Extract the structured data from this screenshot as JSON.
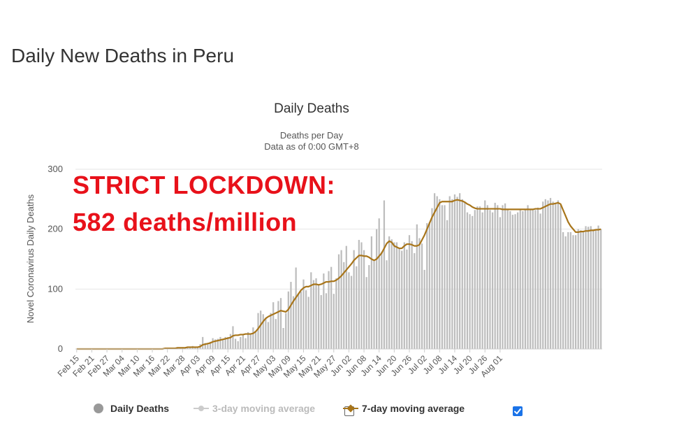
{
  "page": {
    "title": "Daily New Deaths in Peru"
  },
  "annotation": {
    "line1": "STRICT LOCKDOWN:",
    "line2": "582 deaths/million",
    "color": "#e8111a"
  },
  "legend": {
    "items": [
      {
        "label": "Daily Deaths",
        "enabled": true
      },
      {
        "label": "3-day moving average",
        "enabled": false,
        "checkbox_checked": false
      },
      {
        "label": "7-day moving average",
        "enabled": true,
        "checkbox_checked": true
      }
    ]
  },
  "colors": {
    "bars": "#bdbdbd",
    "ma7": "#a8751a",
    "grid": "#e6e6e6",
    "checkbox": "#1a73e8"
  },
  "chart_data": {
    "type": "bar",
    "title": "Daily Deaths",
    "subtitle": [
      "Deaths per Day",
      "Data as of 0:00 GMT+8"
    ],
    "ylabel": "Novel Coronavirus Daily Deaths",
    "xlabel": "",
    "ylim": [
      0,
      300
    ],
    "yticks": [
      0,
      100,
      200,
      300
    ],
    "grid": true,
    "legend_position": "bottom",
    "start_date": "Feb 15",
    "xticks": [
      "Feb 15",
      "Feb 21",
      "Feb 27",
      "Mar 04",
      "Mar 10",
      "Mar 16",
      "Mar 22",
      "Mar 28",
      "Apr 03",
      "Apr 09",
      "Apr 15",
      "Apr 21",
      "Apr 27",
      "May 03",
      "May 09",
      "May 15",
      "May 21",
      "May 27",
      "Jun 02",
      "Jun 08",
      "Jun 14",
      "Jun 20",
      "Jun 26",
      "Jul 02",
      "Jul 08",
      "Jul 14",
      "Jul 20",
      "Jul 26",
      "Aug 01"
    ],
    "series": [
      {
        "name": "Daily Deaths",
        "type": "bar",
        "x_start": "Feb 15",
        "values": [
          0,
          0,
          0,
          0,
          0,
          0,
          0,
          0,
          0,
          0,
          0,
          0,
          0,
          0,
          0,
          0,
          0,
          0,
          0,
          0,
          0,
          0,
          0,
          0,
          0,
          0,
          0,
          0,
          0,
          0,
          0,
          0,
          0,
          0,
          0,
          2,
          0,
          2,
          2,
          2,
          3,
          2,
          3,
          1,
          4,
          3,
          5,
          4,
          2,
          8,
          20,
          10,
          10,
          12,
          18,
          16,
          17,
          20,
          15,
          20,
          20,
          25,
          38,
          17,
          13,
          20,
          24,
          18,
          28,
          24,
          36,
          30,
          60,
          64,
          58,
          52,
          45,
          60,
          78,
          50,
          80,
          85,
          35,
          60,
          96,
          112,
          88,
          136,
          92,
          96,
          116,
          98,
          87,
          128,
          115,
          118,
          108,
          90,
          126,
          93,
          130,
          137,
          92,
          118,
          158,
          165,
          145,
          172,
          128,
          122,
          165,
          138,
          182,
          178,
          165,
          120,
          140,
          188,
          147,
          200,
          218,
          162,
          248,
          148,
          188,
          183,
          178,
          178,
          168,
          164,
          178,
          166,
          190,
          180,
          160,
          208,
          185,
          176,
          132,
          210,
          212,
          235,
          260,
          255,
          250,
          240,
          240,
          215,
          255,
          250,
          258,
          254,
          260,
          250,
          245,
          228,
          225,
          222,
          232,
          238,
          238,
          228,
          248,
          240,
          232,
          228,
          244,
          240,
          220,
          240,
          243,
          232,
          230,
          224,
          225,
          228,
          232,
          230,
          232,
          240,
          232,
          232,
          232,
          236,
          226,
          246,
          250,
          248,
          252,
          246,
          244,
          248,
          240,
          195,
          188,
          195,
          195,
          190,
          190,
          200,
          198,
          195,
          205,
          204,
          205,
          198,
          200,
          206,
          200
        ]
      },
      {
        "name": "7-day moving average",
        "type": "line",
        "x_start": "Feb 15",
        "values": [
          0,
          0,
          0,
          0,
          0,
          0,
          0,
          0,
          0,
          0,
          0,
          0,
          0,
          0,
          0,
          0,
          0,
          0,
          0,
          0,
          0,
          0,
          0,
          0,
          0,
          0,
          0,
          0,
          0,
          0,
          0,
          0,
          0,
          0,
          0,
          1,
          1,
          1,
          1,
          1,
          2,
          2,
          2,
          2,
          3,
          3,
          3,
          3,
          3,
          4,
          7,
          8,
          9,
          10,
          12,
          13,
          14,
          15,
          16,
          17,
          18,
          19,
          22,
          23,
          23,
          24,
          24,
          25,
          25,
          25,
          26,
          29,
          34,
          40,
          46,
          51,
          54,
          56,
          58,
          60,
          62,
          64,
          63,
          62,
          66,
          73,
          80,
          86,
          92,
          98,
          102,
          104,
          104,
          106,
          108,
          108,
          107,
          108,
          110,
          112,
          112,
          113,
          113,
          115,
          118,
          122,
          127,
          132,
          137,
          142,
          148,
          152,
          156,
          156,
          155,
          155,
          153,
          150,
          148,
          150,
          155,
          160,
          168,
          176,
          180,
          178,
          172,
          170,
          168,
          168,
          172,
          175,
          175,
          174,
          172,
          172,
          174,
          182,
          190,
          200,
          210,
          220,
          228,
          236,
          244,
          246,
          246,
          246,
          246,
          246,
          248,
          249,
          248,
          247,
          245,
          242,
          240,
          237,
          235,
          234,
          234,
          234,
          234,
          234,
          234,
          234,
          234,
          234,
          234,
          233,
          233,
          233,
          233,
          233,
          233,
          233,
          233,
          233,
          233,
          233,
          233,
          233,
          234,
          234,
          234,
          236,
          238,
          240,
          242,
          242,
          243,
          244,
          242,
          232,
          222,
          212,
          205,
          200,
          195,
          195,
          196,
          196,
          197,
          197,
          198,
          198,
          199,
          199,
          200
        ]
      }
    ]
  }
}
